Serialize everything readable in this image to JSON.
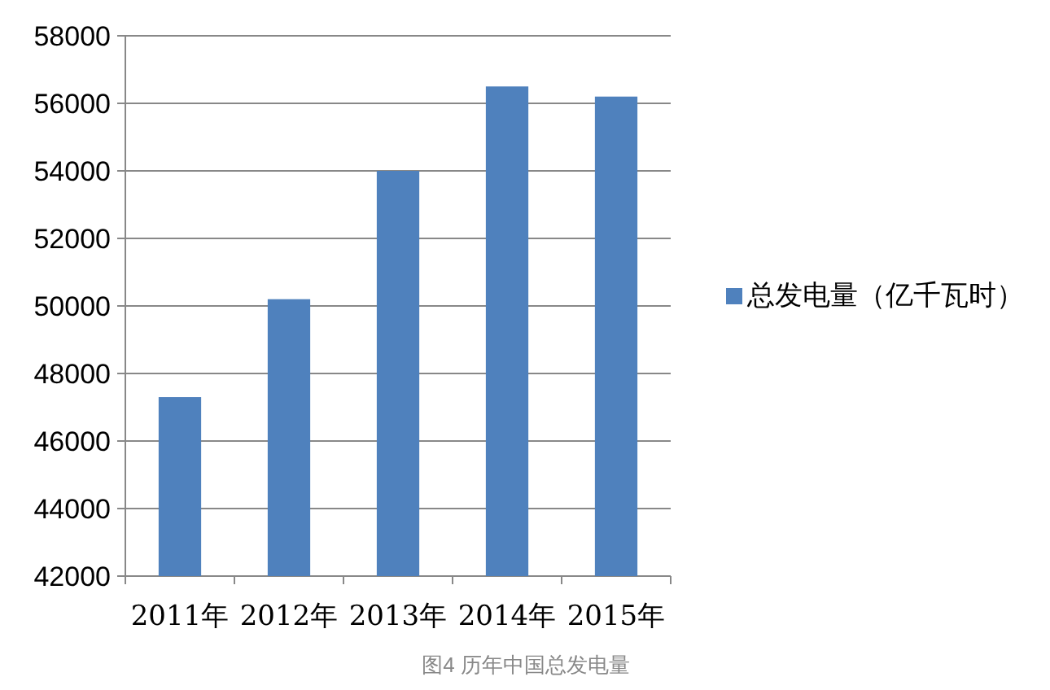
{
  "chart_data": {
    "type": "bar",
    "categories": [
      "2011年",
      "2012年",
      "2013年",
      "2014年",
      "2015年"
    ],
    "series": [
      {
        "name": "总发电量（亿千瓦时）",
        "color": "#4f81bd",
        "values": [
          47300,
          50200,
          54000,
          56500,
          56200
        ]
      }
    ],
    "ylim": [
      42000,
      58000
    ],
    "yticks": [
      42000,
      44000,
      46000,
      48000,
      50000,
      52000,
      54000,
      56000,
      58000
    ],
    "grid": "y",
    "legend": "right",
    "annotations": [
      "图4 历年中国总发电量"
    ]
  }
}
